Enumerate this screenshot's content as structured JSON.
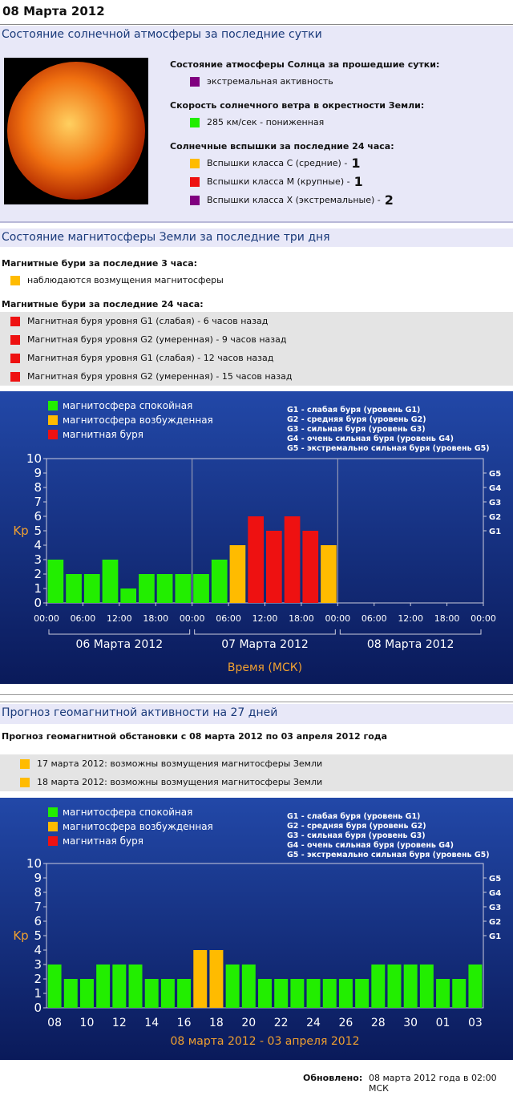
{
  "header": {
    "date": "08 Марта 2012"
  },
  "solar": {
    "title": "Состояние солнечной атмосферы за последние сутки",
    "groups": [
      {
        "heading": "Состояние атмосферы Солнца за прошедшие сутки:",
        "items": [
          {
            "color": "#800080",
            "text": "экстремальная активность"
          }
        ]
      },
      {
        "heading": "Скорость солнечного ветра в окрестности Земли:",
        "items": [
          {
            "color": "#22ee00",
            "text": "285 км/сек - пониженная"
          }
        ]
      },
      {
        "heading": "Солнечные вспышки за последние 24 часа:",
        "items": [
          {
            "color": "#ffbb00",
            "text": "Вспышки класса C (средние) -",
            "count": 1
          },
          {
            "color": "#ee1111",
            "text": "Вспышки класса M (крупные) -",
            "count": 1
          },
          {
            "color": "#800080",
            "text": "Вспышки класса X (экстремальные) -",
            "count": 2
          }
        ]
      }
    ]
  },
  "magnetosphere": {
    "title": "Состояние магнитосферы Земли за последние три дня",
    "groups": [
      {
        "heading": "Магнитные бури за последние 3 часа:",
        "items": [
          {
            "color": "#ffbb00",
            "text": "наблюдаются возмущения магнитосферы"
          }
        ]
      },
      {
        "heading": "Магнитные бури за последние 24 часа:",
        "items": [
          {
            "color": "#ee1111",
            "text": "Магнитная буря уровня G1 (слабая) - 6 часов назад"
          },
          {
            "color": "#ee1111",
            "text": "Магнитная буря уровня G2 (умеренная) - 9 часов назад"
          },
          {
            "color": "#ee1111",
            "text": "Магнитная буря уровня G1 (слабая) - 12 часов назад"
          },
          {
            "color": "#ee1111",
            "text": "Магнитная буря уровня G2 (умеренная) - 15 часов назад"
          }
        ]
      }
    ]
  },
  "chart_data": [
    {
      "type": "bar",
      "ylabel": "Kp",
      "xlabel": "Время (МСК)",
      "legend": [
        {
          "name": "магнитосфера спокойная",
          "color": "#22ee00"
        },
        {
          "name": "магнитосфера возбужденная",
          "color": "#ffbb00"
        },
        {
          "name": "магнитная буря",
          "color": "#ee1111"
        }
      ],
      "storm_scale": [
        "G1 - слабая буря (уровень G1)",
        "G2 - средняя буря (уровень G2)",
        "G3 - сильная буря (уровень G3)",
        "G4 - очень сильная буря (уровень G4)",
        "G5 - экстремально сильная буря (уровень G5)"
      ],
      "ylim": [
        0,
        10
      ],
      "yticks": [
        0,
        1,
        2,
        3,
        4,
        5,
        6,
        7,
        8,
        9,
        10
      ],
      "y2lim": [
        0,
        10
      ],
      "y2ticks": [
        {
          "value": 5,
          "label": "G1"
        },
        {
          "value": 6,
          "label": "G2"
        },
        {
          "value": 7,
          "label": "G3"
        },
        {
          "value": 8,
          "label": "G4"
        },
        {
          "value": 9,
          "label": "G5"
        }
      ],
      "xlim": [
        0,
        72
      ],
      "xticks": [
        {
          "value": 0,
          "label": "00:00"
        },
        {
          "value": 6,
          "label": "06:00"
        },
        {
          "value": 12,
          "label": "12:00"
        },
        {
          "value": 18,
          "label": "18:00"
        },
        {
          "value": 24,
          "label": "00:00"
        },
        {
          "value": 30,
          "label": "06:00"
        },
        {
          "value": 36,
          "label": "12:00"
        },
        {
          "value": 42,
          "label": "18:00"
        },
        {
          "value": 48,
          "label": "00:00"
        },
        {
          "value": 54,
          "label": "06:00"
        },
        {
          "value": 60,
          "label": "12:00"
        },
        {
          "value": 66,
          "label": "18:00"
        },
        {
          "value": 72,
          "label": "00:00"
        }
      ],
      "day_labels": [
        "06 Марта 2012",
        "07 Марта 2012",
        "08 Марта 2012"
      ],
      "x": [
        1.5,
        4.5,
        7.5,
        10.5,
        13.5,
        16.5,
        19.5,
        22.5,
        25.5,
        28.5,
        31.5,
        34.5,
        37.5,
        40.5,
        43.5,
        46.5
      ],
      "values": [
        3,
        2,
        2,
        3,
        1,
        2,
        2,
        2,
        2,
        3,
        4,
        6,
        5,
        6,
        5,
        4
      ],
      "colors": [
        "#22ee00",
        "#22ee00",
        "#22ee00",
        "#22ee00",
        "#22ee00",
        "#22ee00",
        "#22ee00",
        "#22ee00",
        "#22ee00",
        "#22ee00",
        "#ffbb00",
        "#ee1111",
        "#ee1111",
        "#ee1111",
        "#ee1111",
        "#ffbb00"
      ]
    },
    {
      "type": "bar",
      "ylabel": "Kp",
      "xlabel": "08 марта 2012 - 03 апреля 2012",
      "legend": [
        {
          "name": "магнитосфера спокойная",
          "color": "#22ee00"
        },
        {
          "name": "магнитосфера возбужденная",
          "color": "#ffbb00"
        },
        {
          "name": "магнитная буря",
          "color": "#ee1111"
        }
      ],
      "storm_scale": [
        "G1 - слабая буря (уровень G1)",
        "G2 - средняя буря (уровень G2)",
        "G3 - сильная буря (уровень G3)",
        "G4 - очень сильная буря (уровень G4)",
        "G5 - экстремально сильная буря (уровень G5)"
      ],
      "ylim": [
        0,
        10
      ],
      "yticks": [
        0,
        1,
        2,
        3,
        4,
        5,
        6,
        7,
        8,
        9,
        10
      ],
      "y2lim": [
        0,
        10
      ],
      "y2ticks": [
        {
          "value": 5,
          "label": "G1"
        },
        {
          "value": 6,
          "label": "G2"
        },
        {
          "value": 7,
          "label": "G3"
        },
        {
          "value": 8,
          "label": "G4"
        },
        {
          "value": 9,
          "label": "G5"
        }
      ],
      "categories": [
        "08",
        null,
        "10",
        null,
        "12",
        null,
        "14",
        null,
        "16",
        null,
        "18",
        null,
        "20",
        null,
        "22",
        null,
        "24",
        null,
        "26",
        null,
        "28",
        null,
        "30",
        null,
        "01",
        null,
        "03"
      ],
      "values": [
        3,
        2,
        2,
        3,
        3,
        3,
        2,
        2,
        2,
        4,
        4,
        3,
        3,
        2,
        2,
        2,
        2,
        2,
        2,
        2,
        3,
        3,
        3,
        3,
        2,
        2,
        3
      ],
      "colors": [
        "#22ee00",
        "#22ee00",
        "#22ee00",
        "#22ee00",
        "#22ee00",
        "#22ee00",
        "#22ee00",
        "#22ee00",
        "#22ee00",
        "#ffbb00",
        "#ffbb00",
        "#22ee00",
        "#22ee00",
        "#22ee00",
        "#22ee00",
        "#22ee00",
        "#22ee00",
        "#22ee00",
        "#22ee00",
        "#22ee00",
        "#22ee00",
        "#22ee00",
        "#22ee00",
        "#22ee00",
        "#22ee00",
        "#22ee00",
        "#22ee00"
      ]
    }
  ],
  "forecast": {
    "title": "Прогноз геомагнитной активности на 27 дней",
    "subtitle": "Прогноз геомагнитной обстановки с 08 марта 2012 по 03 апреля 2012 года",
    "items": [
      {
        "color": "#ffbb00",
        "text": "17 марта 2012: возможны возмущения магнитосферы Земли"
      },
      {
        "color": "#ffbb00",
        "text": "18 марта 2012: возможны возмущения магнитосферы Земли"
      }
    ]
  },
  "footer": {
    "label": "Обновлено:",
    "value": "08 марта 2012 года в 02:00 МСК"
  }
}
